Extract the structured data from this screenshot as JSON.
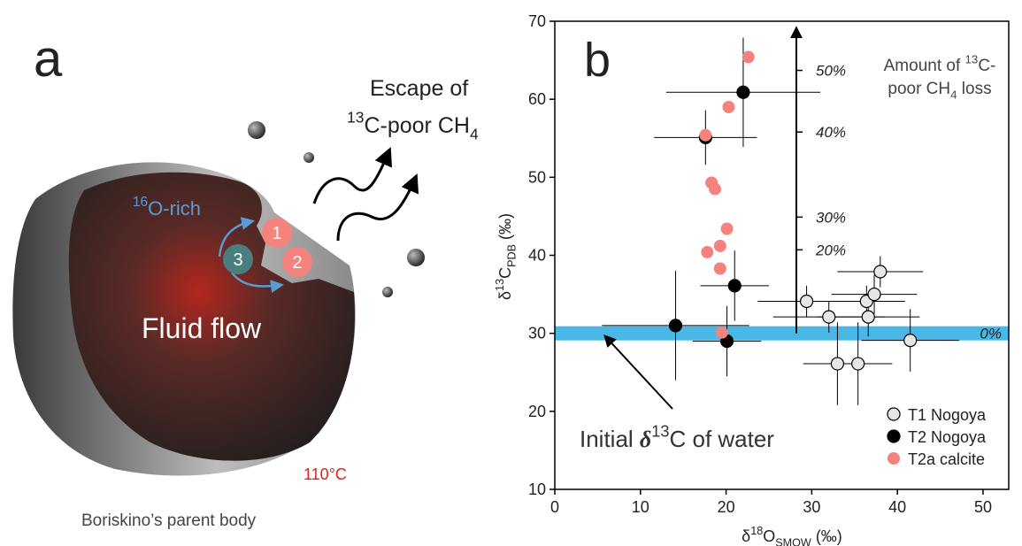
{
  "panel_a": {
    "label": "a",
    "escape_line1": "Escape of",
    "escape_line2": [
      {
        "text": "13",
        "style": "sup"
      },
      {
        "text": "C-poor CH"
      },
      {
        "text": "4",
        "style": "sub"
      }
    ],
    "o_rich": [
      {
        "text": "16",
        "style": "sup"
      },
      {
        "text": "O-rich"
      }
    ],
    "step1": "1",
    "step2": "2",
    "step3": "3",
    "fluid": "Fluid flow",
    "temperature": "110°C",
    "caption": "Boriskino’s parent body"
  },
  "chart_data": {
    "type": "scatter",
    "panel_label": "b",
    "xlabel": [
      {
        "text": "δ"
      },
      {
        "text": "18",
        "style": "sup"
      },
      {
        "text": "O"
      },
      {
        "text": "SMOW",
        "style": "sub"
      },
      {
        "text": " (‰)"
      }
    ],
    "ylabel": [
      {
        "text": "δ"
      },
      {
        "text": "13",
        "style": "sup"
      },
      {
        "text": "C"
      },
      {
        "text": "PDB",
        "style": "sub"
      },
      {
        "text": " (‰)"
      }
    ],
    "xlim": [
      0,
      53
    ],
    "xticks": [
      0,
      10,
      20,
      30,
      40,
      50
    ],
    "ylim": [
      10,
      70
    ],
    "yticks": [
      10,
      20,
      30,
      40,
      50,
      60,
      70
    ],
    "band_value": 30,
    "band_color": "#29abe2",
    "loss_title_line1": [
      {
        "text": "Amount of "
      },
      {
        "text": "13",
        "style": "sup"
      },
      {
        "text": "C-"
      }
    ],
    "loss_title_line2": [
      {
        "text": "poor CH"
      },
      {
        "text": "4",
        "style": "sub"
      },
      {
        "text": " loss"
      }
    ],
    "loss_ticks": [
      {
        "value": 30,
        "label": "0%"
      },
      {
        "value": 40.7,
        "label": "20%"
      },
      {
        "value": 44.9,
        "label": "30%"
      },
      {
        "value": 55.8,
        "label": "40%"
      },
      {
        "value": 63.7,
        "label": "50%"
      }
    ],
    "annotation": [
      {
        "text": "Initial "
      },
      {
        "text": "δ",
        "style": "bold-italic"
      },
      {
        "text": "13",
        "style": "sup"
      },
      {
        "text": "C of water"
      }
    ],
    "series": [
      {
        "name": "T1 Nogoya",
        "color": "#e6e6e6",
        "x": [
          29.4,
          32.0,
          33.0,
          35.4,
          36.4,
          36.6,
          37.3,
          38.0,
          41.5
        ],
        "y": [
          34.1,
          32.1,
          26.1,
          26.1,
          34.1,
          32.1,
          35.0,
          37.9,
          29.1
        ],
        "xerr": [
          5.7,
          6.5,
          4,
          4,
          4.5,
          6,
          5,
          5,
          5.7
        ],
        "yerr": [
          2,
          2,
          5.3,
          5.3,
          2,
          2.5,
          2.5,
          2,
          4
        ]
      },
      {
        "name": "T2 Nogoya",
        "color": "#000000",
        "x": [
          14.1,
          20.1,
          21.0,
          17.6,
          22.0
        ],
        "y": [
          31.0,
          29.0,
          36.1,
          55.1,
          60.9
        ],
        "xerr": [
          8.6,
          4,
          4,
          6,
          9
        ],
        "yerr": [
          7,
          4.5,
          4.5,
          3.5,
          7
        ]
      },
      {
        "name": "T2a calcite",
        "color": "#f4837d",
        "x": [
          22.6,
          20.3,
          17.6,
          18.3,
          18.7,
          20.1,
          19.3,
          17.8,
          19.3,
          19.5
        ],
        "y": [
          65.4,
          59.0,
          55.4,
          49.3,
          48.5,
          43.4,
          41.2,
          40.4,
          38.3,
          30.1
        ]
      }
    ]
  }
}
